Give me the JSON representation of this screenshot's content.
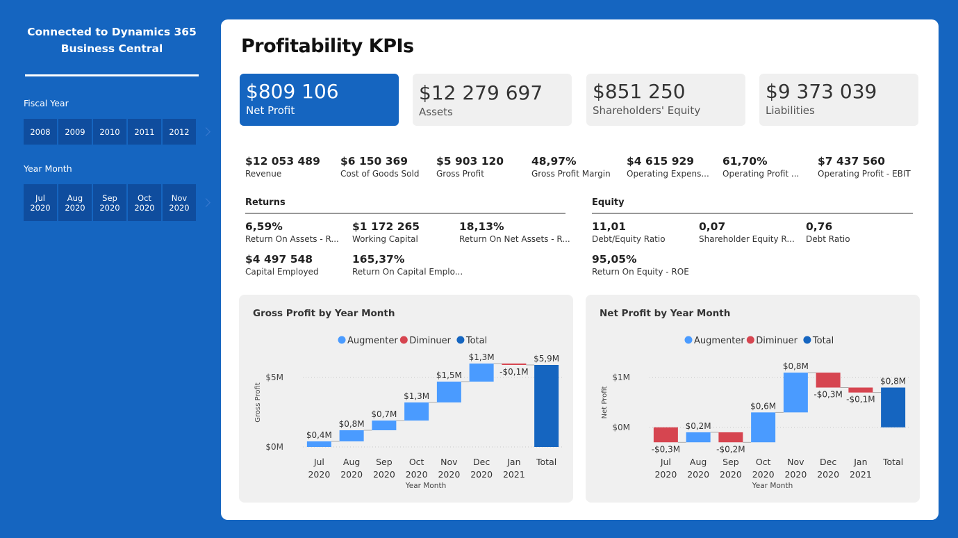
{
  "sidebar": {
    "title": "Connected to Dynamics 365 Business Central",
    "fiscal_year": {
      "label": "Fiscal Year",
      "options": [
        "2008",
        "2009",
        "2010",
        "2011",
        "2012"
      ]
    },
    "year_month": {
      "label": "Year Month",
      "options": [
        "Jul\n2020",
        "Aug\n2020",
        "Sep\n2020",
        "Oct\n2020",
        "Nov\n2020"
      ]
    }
  },
  "main": {
    "title": "Profitability KPIs",
    "cards": [
      {
        "value": "$809 106",
        "label": "Net Profit"
      },
      {
        "value": "$12 279 697",
        "label": "Assets"
      },
      {
        "value": "$851 250",
        "label": "Shareholders' Equity"
      },
      {
        "value": "$9 373 039",
        "label": "Liabilities"
      }
    ],
    "kpis": [
      {
        "value": "$12 053 489",
        "label": "Revenue"
      },
      {
        "value": "$6 150 369",
        "label": "Cost of Goods Sold"
      },
      {
        "value": "$5 903 120",
        "label": "Gross Profit"
      },
      {
        "value": "48,97%",
        "label": "Gross Profit Margin"
      },
      {
        "value": "$4 615 929",
        "label": "Operating Expens..."
      },
      {
        "value": "61,70%",
        "label": "Operating Profit ..."
      },
      {
        "value": "$7 437 560",
        "label": "Operating Profit - EBIT"
      }
    ],
    "returns": {
      "title": "Returns",
      "items": [
        {
          "value": "6,59%",
          "label": "Return On Assets - R..."
        },
        {
          "value": "$1 172 265",
          "label": "Working Capital"
        },
        {
          "value": "18,13%",
          "label": "Return On Net Assets - R..."
        },
        {
          "value": "$4 497 548",
          "label": "Capital Employed"
        },
        {
          "value": "165,37%",
          "label": "Return On Capital Emplo..."
        }
      ]
    },
    "equity": {
      "title": "Equity",
      "items": [
        {
          "value": "11,01",
          "label": "Debt/Equity Ratio"
        },
        {
          "value": "0,07",
          "label": "Shareholder Equity R..."
        },
        {
          "value": "0,76",
          "label": "Debt Ratio"
        },
        {
          "value": "95,05%",
          "label": "Return On Equity - ROE"
        }
      ]
    }
  },
  "colors": {
    "increase": "#4A9BFF",
    "decrease": "#D64550",
    "total": "#1565C0",
    "brand": "#1565C0"
  },
  "chart_data": [
    {
      "type": "waterfall",
      "title": "Gross Profit by Year Month",
      "legend": [
        "Augmenter",
        "Diminuer",
        "Total"
      ],
      "legend_position": "top-center",
      "xlabel": "Year Month",
      "ylabel": "Gross Profit",
      "categories": [
        "Jul\n2020",
        "Aug\n2020",
        "Sep\n2020",
        "Oct\n2020",
        "Nov\n2020",
        "Dec\n2020",
        "Jan\n2021",
        "Total"
      ],
      "values": [
        0.4,
        0.8,
        0.7,
        1.3,
        1.5,
        1.3,
        -0.1,
        5.9
      ],
      "labels": [
        "$0,4M",
        "$0,8M",
        "$0,7M",
        "$1,3M",
        "$1,5M",
        "$1,3M",
        "-$0,1M",
        "$5,9M"
      ],
      "yticks": [
        0,
        5
      ],
      "ytick_labels": [
        "$0M",
        "$5M"
      ],
      "ylim": [
        -0.2,
        6.6
      ]
    },
    {
      "type": "waterfall",
      "title": "Net Profit by Year Month",
      "legend": [
        "Augmenter",
        "Diminuer",
        "Total"
      ],
      "legend_position": "top-center",
      "xlabel": "Year Month",
      "ylabel": "Net Profit",
      "categories": [
        "Jul\n2020",
        "Aug\n2020",
        "Sep\n2020",
        "Oct\n2020",
        "Nov\n2020",
        "Dec\n2020",
        "Jan\n2021",
        "Total"
      ],
      "values": [
        -0.3,
        0.2,
        -0.2,
        0.6,
        0.8,
        -0.3,
        -0.1,
        0.8
      ],
      "labels": [
        "-$0,3M",
        "$0,2M",
        "-$0,2M",
        "$0,6M",
        "$0,8M",
        "-$0,3M",
        "-$0,1M",
        "$0,8M"
      ],
      "yticks": [
        0,
        1
      ],
      "ytick_labels": [
        "$0M",
        "$1M"
      ],
      "ylim": [
        -0.45,
        1.45
      ]
    }
  ]
}
